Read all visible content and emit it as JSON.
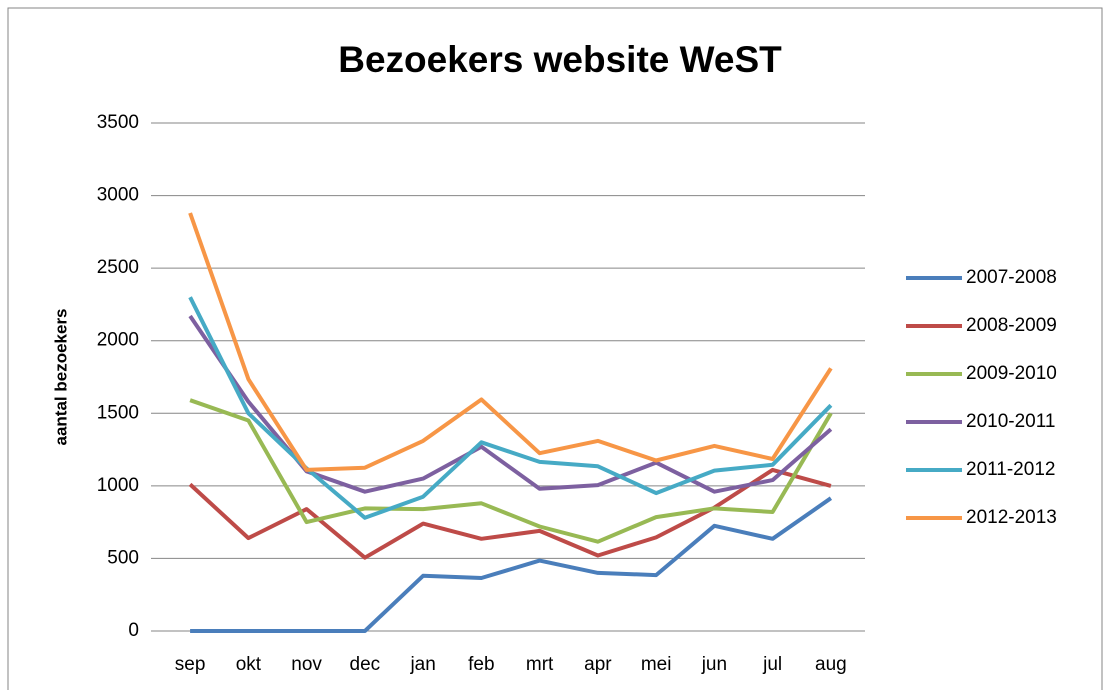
{
  "chart_data": {
    "type": "line",
    "title": "Bezoekers website WeST",
    "y_label": "aantal bezoekers",
    "categories": [
      "sep",
      "okt",
      "nov",
      "dec",
      "jan",
      "feb",
      "mrt",
      "apr",
      "mei",
      "jun",
      "jul",
      "aug"
    ],
    "series": [
      {
        "name": "2007-2008",
        "color": "#4a7ebb",
        "values": [
          0,
          0,
          0,
          0,
          380,
          365,
          485,
          400,
          385,
          725,
          635,
          915
        ]
      },
      {
        "name": "2008-2009",
        "color": "#be4b48",
        "values": [
          1010,
          640,
          840,
          505,
          740,
          635,
          690,
          520,
          645,
          850,
          1110,
          1000
        ]
      },
      {
        "name": "2009-2010",
        "color": "#98b954",
        "values": [
          1590,
          1450,
          750,
          845,
          840,
          880,
          720,
          615,
          785,
          845,
          820,
          1500
        ]
      },
      {
        "name": "2010-2011",
        "color": "#7d60a0",
        "values": [
          2170,
          1580,
          1100,
          960,
          1050,
          1270,
          980,
          1005,
          1160,
          960,
          1040,
          1390
        ]
      },
      {
        "name": "2011-2012",
        "color": "#46aac5",
        "values": [
          2300,
          1500,
          1120,
          780,
          925,
          1300,
          1165,
          1135,
          950,
          1105,
          1145,
          1555
        ]
      },
      {
        "name": "2012-2013",
        "color": "#f79646",
        "values": [
          2880,
          1735,
          1110,
          1125,
          1310,
          1595,
          1225,
          1310,
          1175,
          1275,
          1185,
          1810
        ]
      }
    ],
    "ylim": [
      0,
      3500
    ],
    "yticks": [
      0,
      500,
      1000,
      1500,
      2000,
      2500,
      3000,
      3500
    ],
    "grid": true,
    "legend": "right"
  }
}
